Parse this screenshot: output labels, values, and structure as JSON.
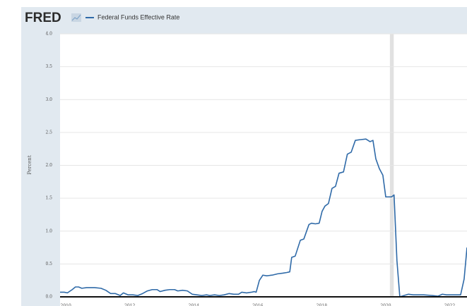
{
  "header": {
    "logo": "FRED"
  },
  "chart_data": {
    "type": "line",
    "y_label": "Percent",
    "x": [
      2009.82,
      2009.95,
      2010.05,
      2010.2,
      2010.3,
      2010.4,
      2010.5,
      2010.65,
      2010.9,
      2011.1,
      2011.25,
      2011.4,
      2011.55,
      2011.7,
      2011.8,
      2011.95,
      2012.1,
      2012.25,
      2012.4,
      2012.55,
      2012.7,
      2012.85,
      2012.95,
      2013.1,
      2013.25,
      2013.4,
      2013.5,
      2013.65,
      2013.8,
      2013.95,
      2014.1,
      2014.25,
      2014.4,
      2014.5,
      2014.65,
      2014.8,
      2014.95,
      2015.1,
      2015.25,
      2015.4,
      2015.5,
      2015.65,
      2015.8,
      2015.89,
      2015.95,
      2016.05,
      2016.16,
      2016.28,
      2016.45,
      2016.62,
      2016.78,
      2016.91,
      2017.0,
      2017.06,
      2017.17,
      2017.33,
      2017.44,
      2017.6,
      2017.68,
      2017.8,
      2017.92,
      2018.01,
      2018.1,
      2018.21,
      2018.32,
      2018.43,
      2018.54,
      2018.68,
      2018.8,
      2018.92,
      2019.05,
      2019.2,
      2019.38,
      2019.51,
      2019.6,
      2019.69,
      2019.8,
      2019.91,
      2020.0,
      2020.18,
      2020.26,
      2020.35,
      2020.44,
      2020.57,
      2020.71,
      2020.86,
      2021.19,
      2021.46,
      2021.63,
      2021.77,
      2021.9,
      2022.25,
      2022.34,
      2022.45,
      2022.54
    ],
    "series": [
      {
        "name": "Federal Funds Effective Rate",
        "color": "#2f6aa8",
        "values": [
          0.07,
          0.07,
          0.06,
          0.11,
          0.15,
          0.15,
          0.13,
          0.14,
          0.14,
          0.13,
          0.1,
          0.05,
          0.05,
          0.02,
          0.06,
          0.03,
          0.03,
          0.02,
          0.05,
          0.09,
          0.11,
          0.11,
          0.08,
          0.1,
          0.11,
          0.11,
          0.09,
          0.1,
          0.09,
          0.04,
          0.03,
          0.02,
          0.03,
          0.02,
          0.03,
          0.02,
          0.03,
          0.05,
          0.04,
          0.04,
          0.07,
          0.06,
          0.07,
          0.08,
          0.07,
          0.25,
          0.33,
          0.32,
          0.33,
          0.35,
          0.36,
          0.37,
          0.38,
          0.6,
          0.62,
          0.86,
          0.88,
          1.1,
          1.12,
          1.11,
          1.12,
          1.3,
          1.38,
          1.42,
          1.65,
          1.68,
          1.88,
          1.9,
          2.17,
          2.2,
          2.38,
          2.39,
          2.4,
          2.36,
          2.38,
          2.1,
          1.95,
          1.85,
          1.52,
          1.52,
          1.55,
          0.55,
          0.0,
          0.02,
          0.04,
          0.03,
          0.03,
          0.02,
          0.01,
          0.04,
          0.03,
          0.03,
          0.03,
          0.27,
          0.75
        ]
      }
    ],
    "shaded_periods": [
      [
        2020.13,
        2020.25
      ]
    ],
    "xlim": [
      2009.82,
      2022.54
    ],
    "xticks": [
      2010,
      2012,
      2014,
      2016,
      2018,
      2020,
      2022
    ],
    "ylim": [
      0,
      4
    ],
    "yticks": [
      {
        "value": 0,
        "label": "0.0"
      },
      {
        "value": 0.5,
        "label": "0.5"
      },
      {
        "value": 1,
        "label": "1.0"
      },
      {
        "value": 1.5,
        "label": "1.5"
      },
      {
        "value": 2,
        "label": "2.0"
      },
      {
        "value": 2.5,
        "label": "2.5"
      },
      {
        "value": 3,
        "label": "3.0"
      },
      {
        "value": 3.5,
        "label": "3.5"
      },
      {
        "value": 4,
        "label": "4.0"
      }
    ],
    "grid": true
  }
}
